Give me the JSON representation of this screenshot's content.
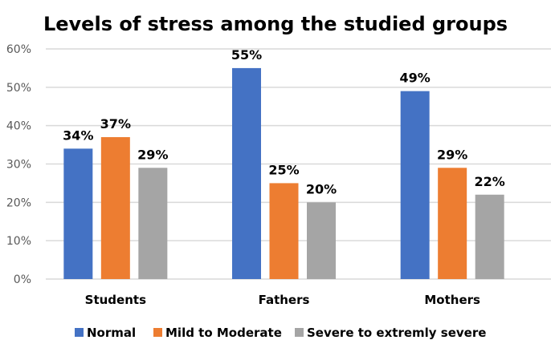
{
  "chart_data": {
    "type": "bar",
    "title": "Levels of stress among the studied groups",
    "xlabel": "",
    "ylabel": "",
    "categories": [
      "Students",
      "Fathers",
      "Mothers"
    ],
    "series": [
      {
        "name": "Normal",
        "color": "#4472C4",
        "values": [
          34,
          55,
          49
        ],
        "labels": [
          "34%",
          "55%",
          "49%"
        ]
      },
      {
        "name": "Mild to Moderate",
        "color": "#ED7D31",
        "values": [
          37,
          25,
          29
        ],
        "labels": [
          "37%",
          "25%",
          "29%"
        ]
      },
      {
        "name": "Severe to extremly severe",
        "color": "#A5A5A5",
        "values": [
          29,
          20,
          22
        ],
        "labels": [
          "29%",
          "20%",
          "22%"
        ]
      }
    ],
    "ylim": [
      0,
      60
    ],
    "yticks": [
      0,
      10,
      20,
      30,
      40,
      50,
      60
    ],
    "ytick_labels": [
      "0%",
      "10%",
      "20%",
      "30%",
      "40%",
      "50%",
      "60%"
    ],
    "grid": true,
    "legend_position": "bottom"
  }
}
